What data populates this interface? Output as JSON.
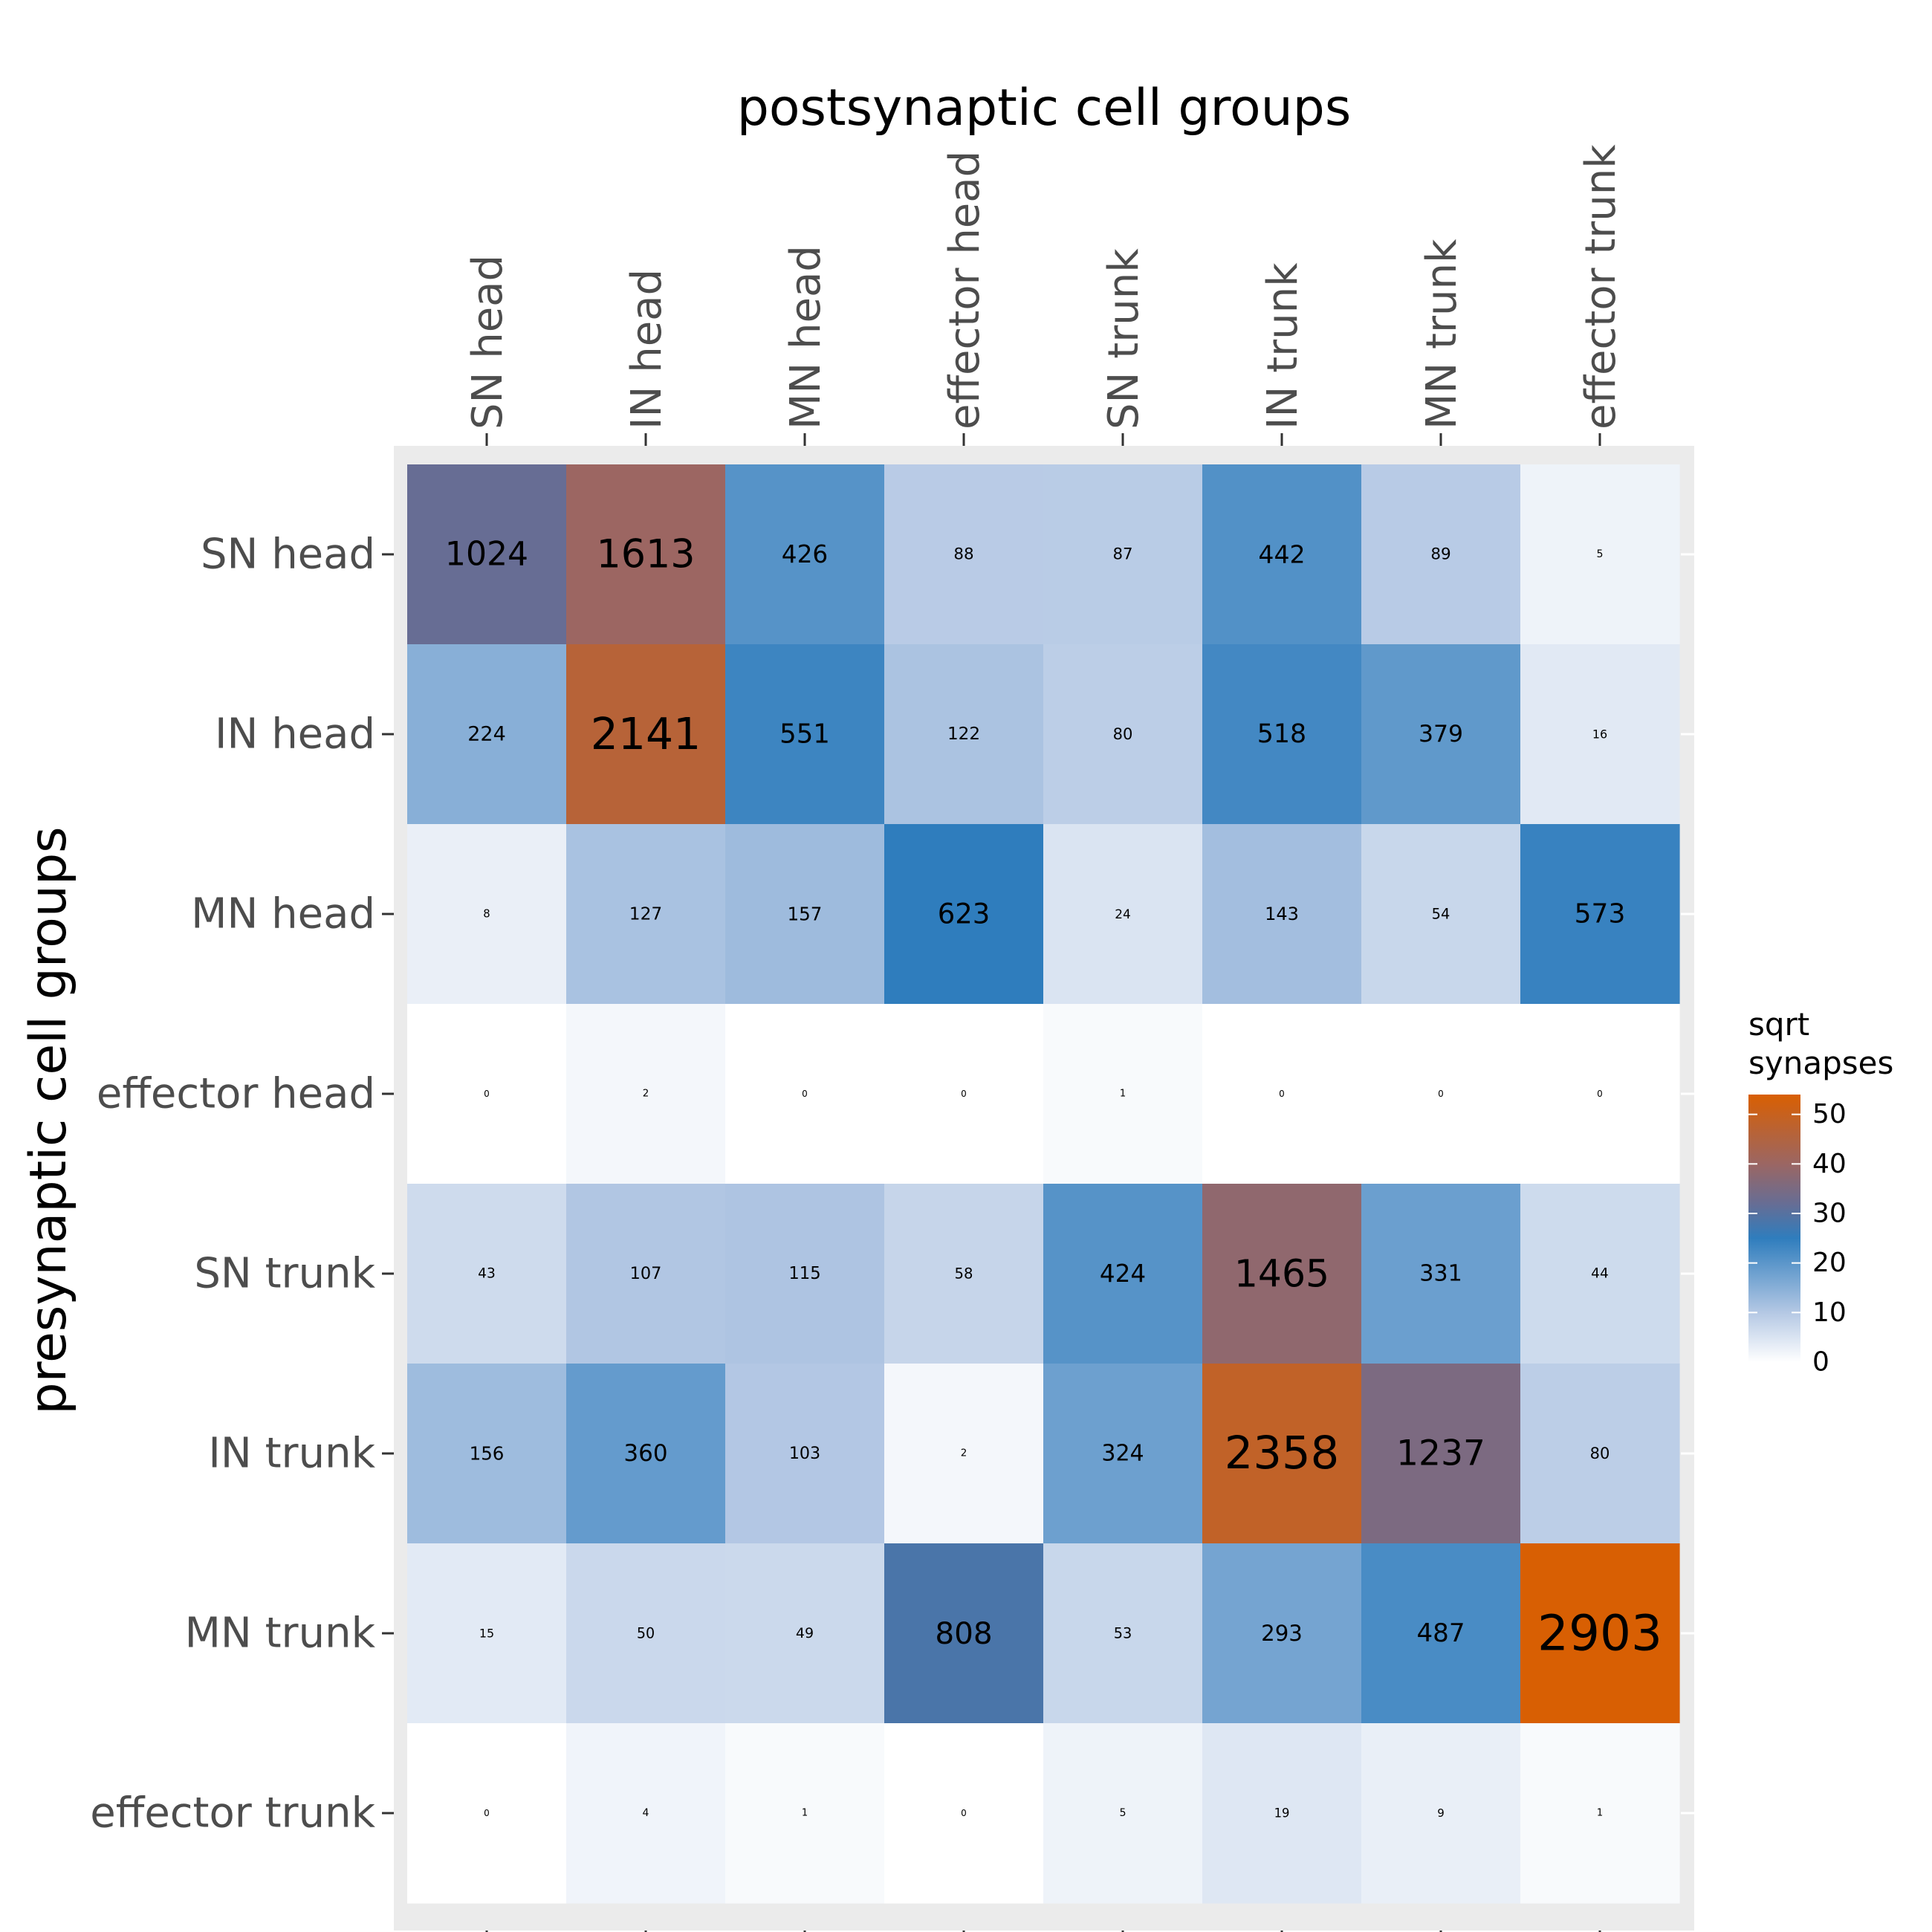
{
  "chart_data": {
    "type": "heatmap",
    "title": "",
    "xlabel": "postsynaptic cell groups",
    "ylabel": "presynaptic cell groups",
    "x_categories": [
      "SN head",
      "IN head",
      "MN head",
      "effector head",
      "SN trunk",
      "IN trunk",
      "MN trunk",
      "effector trunk"
    ],
    "y_categories": [
      "SN head",
      "IN head",
      "MN head",
      "effector head",
      "SN trunk",
      "IN trunk",
      "MN trunk",
      "effector trunk"
    ],
    "values": [
      [
        1024,
        1613,
        426,
        88,
        87,
        442,
        89,
        5
      ],
      [
        224,
        2141,
        551,
        122,
        80,
        518,
        379,
        16
      ],
      [
        8,
        127,
        157,
        623,
        24,
        143,
        54,
        573
      ],
      [
        0,
        2,
        0,
        0,
        1,
        0,
        0,
        0
      ],
      [
        43,
        107,
        115,
        58,
        424,
        1465,
        331,
        44
      ],
      [
        156,
        360,
        103,
        2,
        324,
        2358,
        1237,
        80
      ],
      [
        15,
        50,
        49,
        808,
        53,
        293,
        487,
        2903
      ],
      [
        0,
        4,
        1,
        0,
        5,
        19,
        9,
        1
      ]
    ],
    "color_scale": {
      "transform": "sqrt",
      "title_lines": [
        "sqrt",
        "synapses"
      ],
      "ticks": [
        0,
        10,
        20,
        30,
        40,
        50
      ],
      "range": [
        0,
        54
      ],
      "stops": [
        {
          "v": 0,
          "color": "#ffffff"
        },
        {
          "v": 10,
          "color": "#b4c8e4"
        },
        {
          "v": 25,
          "color": "#2f7dbd"
        },
        {
          "v": 32,
          "color": "#676d94"
        },
        {
          "v": 40,
          "color": "#9b6663"
        },
        {
          "v": 54,
          "color": "#d95f02"
        }
      ]
    },
    "x_axis_position": "top",
    "legend_position": "right",
    "panel_background": "#ebebeb"
  }
}
